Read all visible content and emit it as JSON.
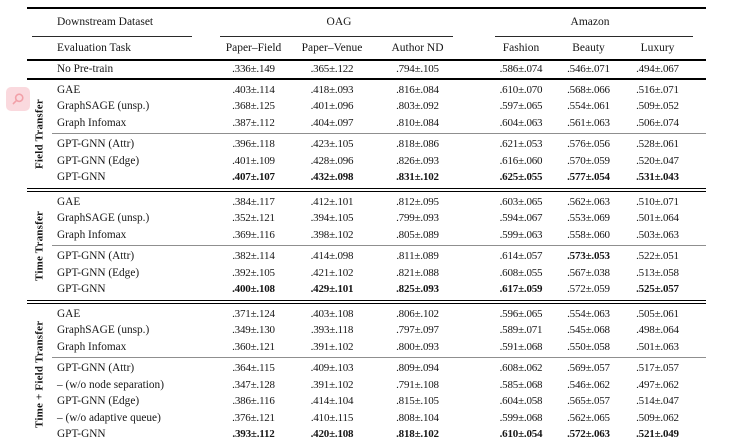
{
  "header": {
    "downstream_dataset": "Downstream Dataset",
    "evaluation_task": "Evaluation Task",
    "groups": [
      {
        "label": "OAG",
        "cols": [
          "Paper–Field",
          "Paper–Venue",
          "Author ND"
        ]
      },
      {
        "label": "Amazon",
        "cols": [
          "Fashion",
          "Beauty",
          "Luxury"
        ]
      }
    ]
  },
  "no_pretrain": {
    "label": "No Pre-train",
    "values": [
      ".336±.149",
      ".365±.122",
      ".794±.105",
      ".586±.074",
      ".546±.071",
      ".494±.067"
    ]
  },
  "sections": [
    {
      "label": "Field Transfer",
      "baseline_rows": [
        {
          "label": "GAE",
          "values": [
            ".403±.114",
            ".418±.093",
            ".816±.084",
            ".610±.070",
            ".568±.066",
            ".516±.071"
          ]
        },
        {
          "label": "GraphSAGE (unsp.)",
          "values": [
            ".368±.125",
            ".401±.096",
            ".803±.092",
            ".597±.065",
            ".554±.061",
            ".509±.052"
          ]
        },
        {
          "label": "Graph Infomax",
          "values": [
            ".387±.112",
            ".404±.097",
            ".810±.084",
            ".604±.063",
            ".561±.063",
            ".506±.074"
          ]
        }
      ],
      "gpt_rows": [
        {
          "label": "GPT-GNN (Attr)",
          "values": [
            ".396±.118",
            ".423±.105",
            ".818±.086",
            ".621±.053",
            ".576±.056",
            ".528±.061"
          ]
        },
        {
          "label": "GPT-GNN (Edge)",
          "values": [
            ".401±.109",
            ".428±.096",
            ".826±.093",
            ".616±.060",
            ".570±.059",
            ".520±.047"
          ]
        },
        {
          "label": "GPT-GNN",
          "values": [
            ".407±.107",
            ".432±.098",
            ".831±.102",
            ".625±.055",
            ".577±.054",
            ".531±.043"
          ],
          "bold": [
            1,
            1,
            1,
            1,
            1,
            1
          ]
        }
      ]
    },
    {
      "label": "Time Transfer",
      "baseline_rows": [
        {
          "label": "GAE",
          "values": [
            ".384±.117",
            ".412±.101",
            ".812±.095",
            ".603±.065",
            ".562±.063",
            ".510±.071"
          ]
        },
        {
          "label": "GraphSAGE (unsp.)",
          "values": [
            ".352±.121",
            ".394±.105",
            ".799±.093",
            ".594±.067",
            ".553±.069",
            ".501±.064"
          ]
        },
        {
          "label": "Graph Infomax",
          "values": [
            ".369±.116",
            ".398±.102",
            ".805±.089",
            ".599±.063",
            ".558±.060",
            ".503±.063"
          ]
        }
      ],
      "gpt_rows": [
        {
          "label": "GPT-GNN (Attr)",
          "values": [
            ".382±.114",
            ".414±.098",
            ".811±.089",
            ".614±.057",
            ".573±.053",
            ".522±.051"
          ],
          "bold": [
            0,
            0,
            0,
            0,
            1,
            0
          ]
        },
        {
          "label": "GPT-GNN (Edge)",
          "values": [
            ".392±.105",
            ".421±.102",
            ".821±.088",
            ".608±.055",
            ".567±.038",
            ".513±.058"
          ]
        },
        {
          "label": "GPT-GNN",
          "values": [
            ".400±.108",
            ".429±.101",
            ".825±.093",
            ".617±.059",
            ".572±.059",
            ".525±.057"
          ],
          "bold": [
            1,
            1,
            1,
            1,
            0,
            1
          ]
        }
      ]
    },
    {
      "label": "Time + Field Transfer",
      "baseline_rows": [
        {
          "label": "GAE",
          "values": [
            ".371±.124",
            ".403±.108",
            ".806±.102",
            ".596±.065",
            ".554±.063",
            ".505±.061"
          ]
        },
        {
          "label": "GraphSAGE (unsp.)",
          "values": [
            ".349±.130",
            ".393±.118",
            ".797±.097",
            ".589±.071",
            ".545±.068",
            ".498±.064"
          ]
        },
        {
          "label": "Graph Infomax",
          "values": [
            ".360±.121",
            ".391±.102",
            ".800±.093",
            ".591±.068",
            ".550±.058",
            ".501±.063"
          ]
        }
      ],
      "gpt_rows": [
        {
          "label": "GPT-GNN (Attr)",
          "values": [
            ".364±.115",
            ".409±.103",
            ".809±.094",
            ".608±.062",
            ".569±.057",
            ".517±.057"
          ]
        },
        {
          "label": "– (w/o node separation)",
          "values": [
            ".347±.128",
            ".391±.102",
            ".791±.108",
            ".585±.068",
            ".546±.062",
            ".497±.062"
          ]
        },
        {
          "label": "GPT-GNN (Edge)",
          "values": [
            ".386±.116",
            ".414±.104",
            ".815±.105",
            ".604±.058",
            ".565±.057",
            ".514±.047"
          ]
        },
        {
          "label": "– (w/o adaptive queue)",
          "values": [
            ".376±.121",
            ".410±.115",
            ".808±.104",
            ".599±.068",
            ".562±.065",
            ".509±.062"
          ]
        },
        {
          "label": "GPT-GNN",
          "values": [
            ".393±.112",
            ".420±.108",
            ".818±.102",
            ".610±.054",
            ".572±.063",
            ".521±.049"
          ],
          "bold": [
            1,
            1,
            1,
            1,
            1,
            1
          ]
        }
      ]
    }
  ],
  "overlay": {
    "magnifier_icon": "magnifier",
    "badge_bg": "#fad6db",
    "badge_glyph_color": "#f2a0a8"
  }
}
